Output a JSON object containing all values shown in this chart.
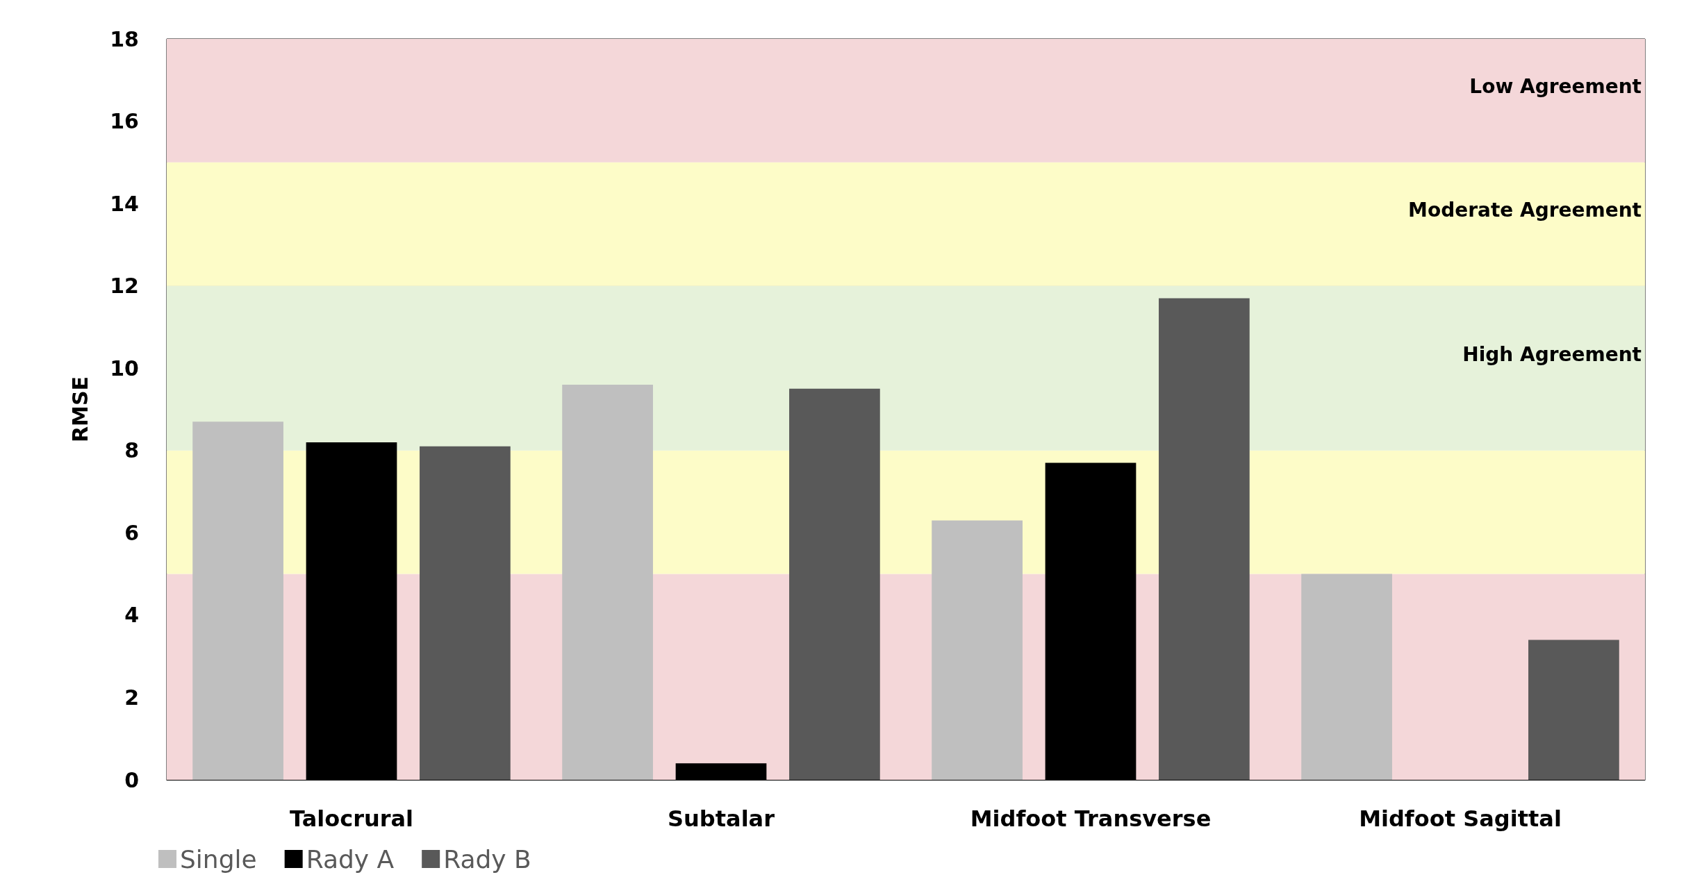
{
  "chart_data": {
    "type": "bar",
    "ylabel": "RMSE",
    "categories": [
      "Talocrural",
      "Subtalar",
      "Midfoot Transverse",
      "Midfoot Sagittal"
    ],
    "series": [
      {
        "name": "Single",
        "color": "#bfbfbf",
        "values": [
          8.7,
          9.6,
          6.3,
          5.0
        ]
      },
      {
        "name": "Rady A",
        "color": "#000000",
        "values": [
          8.2,
          0.4,
          7.7,
          null
        ]
      },
      {
        "name": "Rady B",
        "color": "#595959",
        "values": [
          8.1,
          9.5,
          11.7,
          3.4
        ]
      }
    ],
    "ylim": [
      0,
      18
    ],
    "yticks": [
      0,
      2,
      4,
      6,
      8,
      10,
      12,
      14,
      16,
      18
    ],
    "grid": "y",
    "legend": "bottom left",
    "bands": [
      {
        "axis": "y",
        "from": 0,
        "to": 5,
        "color": "#f4d7d9"
      },
      {
        "axis": "y",
        "from": 5,
        "to": 8,
        "color": "#fdfcc8"
      },
      {
        "axis": "y",
        "from": 8,
        "to": 12,
        "label": "High Agreement",
        "color": "#e6f2da"
      },
      {
        "axis": "y",
        "from": 12,
        "to": 15,
        "label": "Moderate Agreement",
        "color": "#fdfcc8"
      },
      {
        "axis": "y",
        "from": 15,
        "to": 18,
        "label": "Low Agreement",
        "color": "#f4d7d9"
      }
    ]
  }
}
